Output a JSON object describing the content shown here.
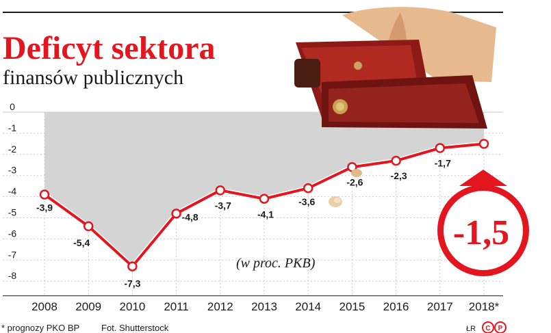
{
  "header": {
    "title": "Deficyt sektora",
    "subtitle": "finansów publicznych"
  },
  "chart_data": {
    "type": "line",
    "categories": [
      "2008",
      "2009",
      "2010",
      "2011",
      "2012",
      "2013",
      "2014",
      "2015",
      "2016",
      "2017",
      "2018*"
    ],
    "values": [
      -3.9,
      -5.4,
      -7.3,
      -4.8,
      -3.7,
      -4.1,
      -3.6,
      -2.6,
      -2.3,
      -1.7,
      -1.5
    ],
    "value_labels": [
      "-3,9",
      "-5,4",
      "-7,3",
      "-4,8",
      "-3,7",
      "-4,1",
      "-3,6",
      "-2,6",
      "-2,3",
      "-1,7",
      "-1,5"
    ],
    "y_ticks": [
      0,
      -1,
      -2,
      -3,
      -4,
      -5,
      -6,
      -7,
      -8
    ],
    "y_tick_labels": [
      "0",
      "-1",
      "-2",
      "-3",
      "-4",
      "-5",
      "-6",
      "-7",
      "-8"
    ],
    "ylim": [
      -8.5,
      0
    ],
    "annotation": "(w proc. PKB)",
    "highlight": "-1,5",
    "grid": true,
    "line_color": "#e3161f",
    "area_color": "#d4d4d4"
  },
  "footer": {
    "note": "* prognozy PKO BP",
    "photo_credit": "Fot. Shutterstock",
    "author": "ŁR",
    "logo": "©P"
  },
  "colors": {
    "accent": "#e3161f",
    "grid": "#c8c8c8",
    "text": "#1a1a1a"
  }
}
